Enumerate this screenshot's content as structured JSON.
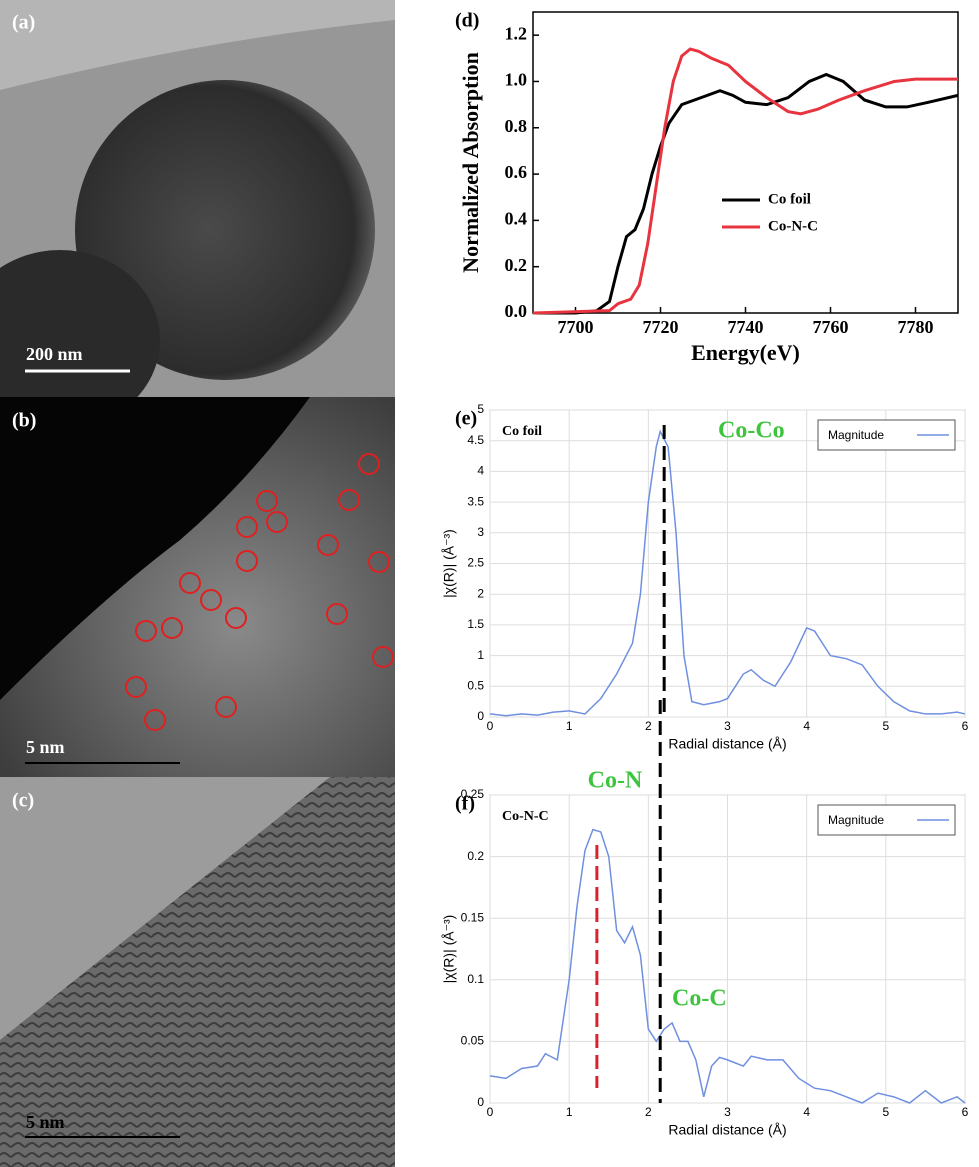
{
  "images": [
    {
      "label": "(a)",
      "scale_bar": "200 nm"
    },
    {
      "label": "(b)",
      "scale_bar": "5 nm"
    },
    {
      "label": "(c)",
      "scale_bar": "5 nm"
    }
  ],
  "chart_data": [
    {
      "type": "line",
      "panel": "(d)",
      "x_label": "Energy(eV)",
      "y_label": "Normalized Absorption",
      "xlim": [
        7690,
        7790
      ],
      "xticks": [
        7700,
        7720,
        7740,
        7760,
        7780
      ],
      "ylim": [
        0,
        1.3
      ],
      "yticks": [
        {
          "value": 0,
          "label": "0.0"
        },
        {
          "value": 0.2,
          "label": "0.2"
        },
        {
          "value": 0.4,
          "label": "0.4"
        },
        {
          "value": 0.6,
          "label": "0.6"
        },
        {
          "value": 0.8,
          "label": "0.8"
        },
        {
          "value": 1.0,
          "label": "1.0"
        },
        {
          "value": 1.2,
          "label": "1.2"
        }
      ],
      "grid": false,
      "legend": "center right",
      "series": [
        {
          "name": "Co foil",
          "color": "#000000",
          "x": [
            7690,
            7700,
            7705,
            7708,
            7710,
            7712,
            7714,
            7716,
            7718,
            7720,
            7722,
            7725,
            7728,
            7731,
            7734,
            7737,
            7740,
            7745,
            7750,
            7755,
            7759,
            7763,
            7768,
            7773,
            7778,
            7783,
            7790
          ],
          "values": [
            0.0,
            0.0,
            0.01,
            0.05,
            0.2,
            0.33,
            0.36,
            0.45,
            0.6,
            0.72,
            0.82,
            0.9,
            0.92,
            0.94,
            0.96,
            0.94,
            0.91,
            0.9,
            0.93,
            1.0,
            1.03,
            1.0,
            0.92,
            0.89,
            0.89,
            0.91,
            0.94
          ]
        },
        {
          "name": "Co-N-C",
          "color": "#e8343f",
          "x": [
            7690,
            7708,
            7710,
            7713,
            7715,
            7717,
            7719,
            7721,
            7723,
            7725,
            7727,
            7729,
            7732,
            7736,
            7740,
            7745,
            7750,
            7753,
            7757,
            7762,
            7768,
            7775,
            7780,
            7790
          ],
          "values": [
            0.0,
            0.01,
            0.04,
            0.06,
            0.12,
            0.3,
            0.55,
            0.8,
            1.0,
            1.11,
            1.14,
            1.13,
            1.1,
            1.07,
            1.0,
            0.93,
            0.87,
            0.86,
            0.88,
            0.92,
            0.96,
            1.0,
            1.01,
            1.01
          ]
        }
      ]
    },
    {
      "type": "line",
      "panel": "(e)",
      "sample": "Co foil",
      "annotations": [
        "Co-Co"
      ],
      "x_label": "Radial distance  (Å)",
      "y_label": "|χ(R)|    (Å⁻³)",
      "xlim": [
        0,
        6
      ],
      "xticks": [
        0,
        1,
        2,
        3,
        4,
        5,
        6
      ],
      "ylim": [
        0,
        5
      ],
      "yticks": [
        0,
        0.5,
        1,
        1.5,
        2,
        2.5,
        3,
        3.5,
        4,
        4.5,
        5
      ],
      "grid": true,
      "legend": "upper right",
      "vlines": [
        {
          "x": 2.2,
          "color": "#000000"
        }
      ],
      "series": [
        {
          "name": "Magnitude",
          "color": "#6f8fe0",
          "x": [
            0,
            0.2,
            0.4,
            0.6,
            0.8,
            1.0,
            1.2,
            1.4,
            1.6,
            1.8,
            1.9,
            2.0,
            2.1,
            2.15,
            2.25,
            2.35,
            2.45,
            2.55,
            2.7,
            2.9,
            3.0,
            3.2,
            3.3,
            3.45,
            3.6,
            3.8,
            4.0,
            4.1,
            4.3,
            4.5,
            4.7,
            4.9,
            5.1,
            5.3,
            5.5,
            5.7,
            5.9,
            6.0
          ],
          "values": [
            0.05,
            0.02,
            0.05,
            0.03,
            0.08,
            0.1,
            0.05,
            0.3,
            0.7,
            1.2,
            2.0,
            3.5,
            4.4,
            4.65,
            4.4,
            3.0,
            1.0,
            0.25,
            0.2,
            0.25,
            0.3,
            0.7,
            0.77,
            0.6,
            0.5,
            0.9,
            1.45,
            1.4,
            1.0,
            0.95,
            0.85,
            0.5,
            0.25,
            0.1,
            0.05,
            0.05,
            0.08,
            0.05
          ]
        }
      ]
    },
    {
      "type": "line",
      "panel": "(f)",
      "sample": "Co-N-C",
      "annotations": [
        "Co-N",
        "Co-C"
      ],
      "x_label": "Radial distance  (Å)",
      "y_label": "|χ(R)|    (Å⁻³)",
      "xlim": [
        0,
        6
      ],
      "xticks": [
        0,
        1,
        2,
        3,
        4,
        5,
        6
      ],
      "ylim": [
        0,
        0.25
      ],
      "yticks": [
        0,
        0.05,
        0.1,
        0.15,
        0.2,
        0.25
      ],
      "grid": true,
      "legend": "upper right",
      "vlines": [
        {
          "x": 1.35,
          "color": "#d8242c"
        },
        {
          "x": 2.15,
          "color": "#000000"
        }
      ],
      "series": [
        {
          "name": "Magnitude",
          "color": "#6f8fe0",
          "x": [
            0,
            0.2,
            0.4,
            0.6,
            0.7,
            0.85,
            1.0,
            1.1,
            1.2,
            1.3,
            1.4,
            1.5,
            1.6,
            1.7,
            1.8,
            1.9,
            2.0,
            2.1,
            2.2,
            2.3,
            2.4,
            2.5,
            2.6,
            2.7,
            2.8,
            2.9,
            3.0,
            3.2,
            3.3,
            3.5,
            3.7,
            3.9,
            4.1,
            4.3,
            4.5,
            4.7,
            4.9,
            5.1,
            5.3,
            5.5,
            5.7,
            5.9,
            6.0
          ],
          "values": [
            0.022,
            0.02,
            0.028,
            0.03,
            0.04,
            0.035,
            0.1,
            0.16,
            0.205,
            0.222,
            0.22,
            0.2,
            0.14,
            0.13,
            0.143,
            0.12,
            0.06,
            0.05,
            0.06,
            0.065,
            0.05,
            0.05,
            0.035,
            0.005,
            0.03,
            0.037,
            0.035,
            0.03,
            0.038,
            0.035,
            0.035,
            0.02,
            0.012,
            0.01,
            0.005,
            0.0,
            0.008,
            0.005,
            0.0,
            0.01,
            0.0,
            0.005,
            0.0
          ]
        }
      ]
    }
  ]
}
